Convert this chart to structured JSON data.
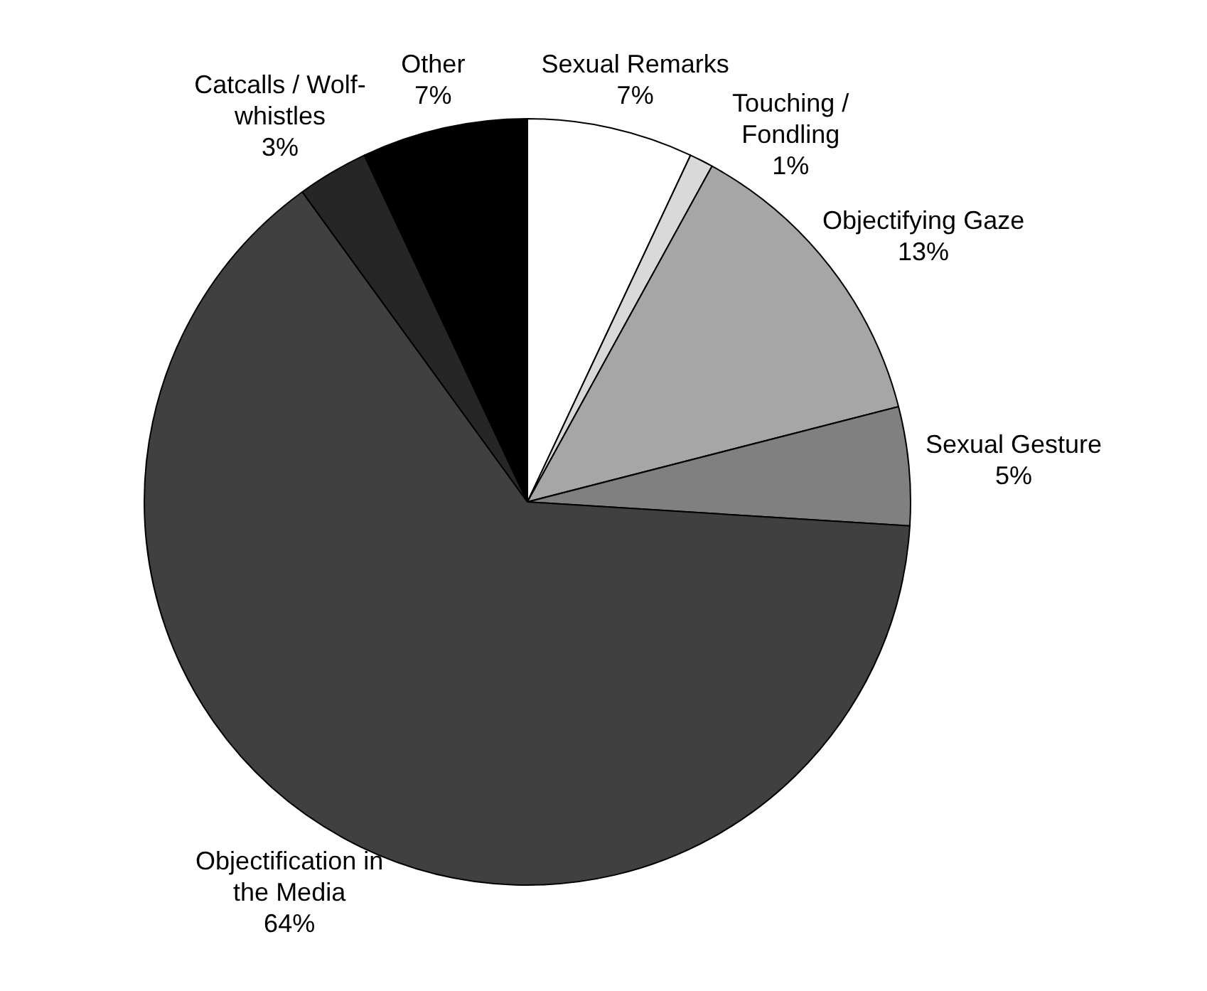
{
  "chart_data": {
    "type": "pie",
    "categories": [
      "Sexual Remarks",
      "Touching / Fondling",
      "Objectifying Gaze",
      "Sexual Gesture",
      "Objectification in the Media",
      "Catcalls / Wolf-whistles",
      "Other"
    ],
    "values": [
      7,
      1,
      13,
      5,
      64,
      3,
      7
    ],
    "value_labels": [
      "7%",
      "1%",
      "13%",
      "5%",
      "64%",
      "3%",
      "7%"
    ],
    "colors": [
      "#ffffff",
      "#d9d9d9",
      "#a6a6a6",
      "#808080",
      "#404040",
      "#262626",
      "#000000"
    ],
    "legend": false
  }
}
